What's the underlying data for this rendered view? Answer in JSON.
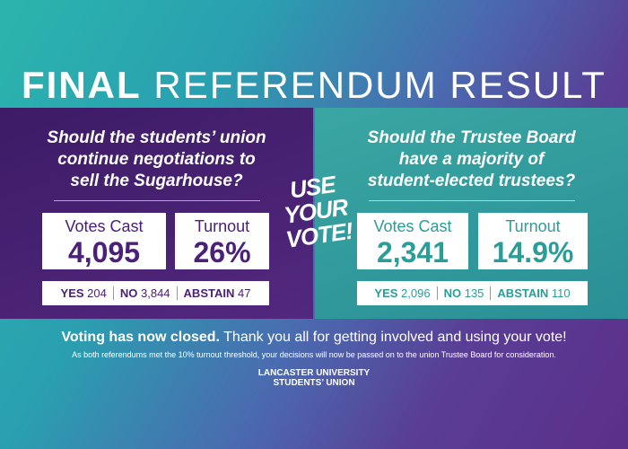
{
  "header": {
    "title_bold": "FINAL",
    "title_light": "REFERENDUM RESULT"
  },
  "referendums": [
    {
      "question_lines": [
        "Should the students’ union",
        "continue negotiations to",
        "sell the Sugarhouse?"
      ],
      "votes_cast_label": "Votes Cast",
      "votes_cast": "4,095",
      "turnout_label": "Turnout",
      "turnout": "26%",
      "results": [
        {
          "label": "YES",
          "count": "204"
        },
        {
          "label": "NO",
          "count": "3,844"
        },
        {
          "label": "ABSTAIN",
          "count": "47"
        }
      ]
    },
    {
      "question_lines": [
        "Should the Trustee Board",
        "have a majority of",
        "student-elected trustees?"
      ],
      "votes_cast_label": "Votes Cast",
      "votes_cast": "2,341",
      "turnout_label": "Turnout",
      "turnout": "14.9%",
      "results": [
        {
          "label": "YES",
          "count": "2,096"
        },
        {
          "label": "NO",
          "count": "135"
        },
        {
          "label": "ABSTAIN",
          "count": "110"
        }
      ]
    }
  ],
  "badge": [
    "USE",
    "YOUR",
    "VOTE!"
  ],
  "footer": {
    "headline_bold": "Voting has now closed.",
    "headline": "Thank you all for getting involved and using your vote!",
    "note": "As both referendums met the 10% turnout threshold, your decisions will now be passed on to the union Trustee Board for consideration.",
    "logo": [
      "LANCASTER UNIVERSITY",
      "STUDENTS’ UNION"
    ]
  }
}
